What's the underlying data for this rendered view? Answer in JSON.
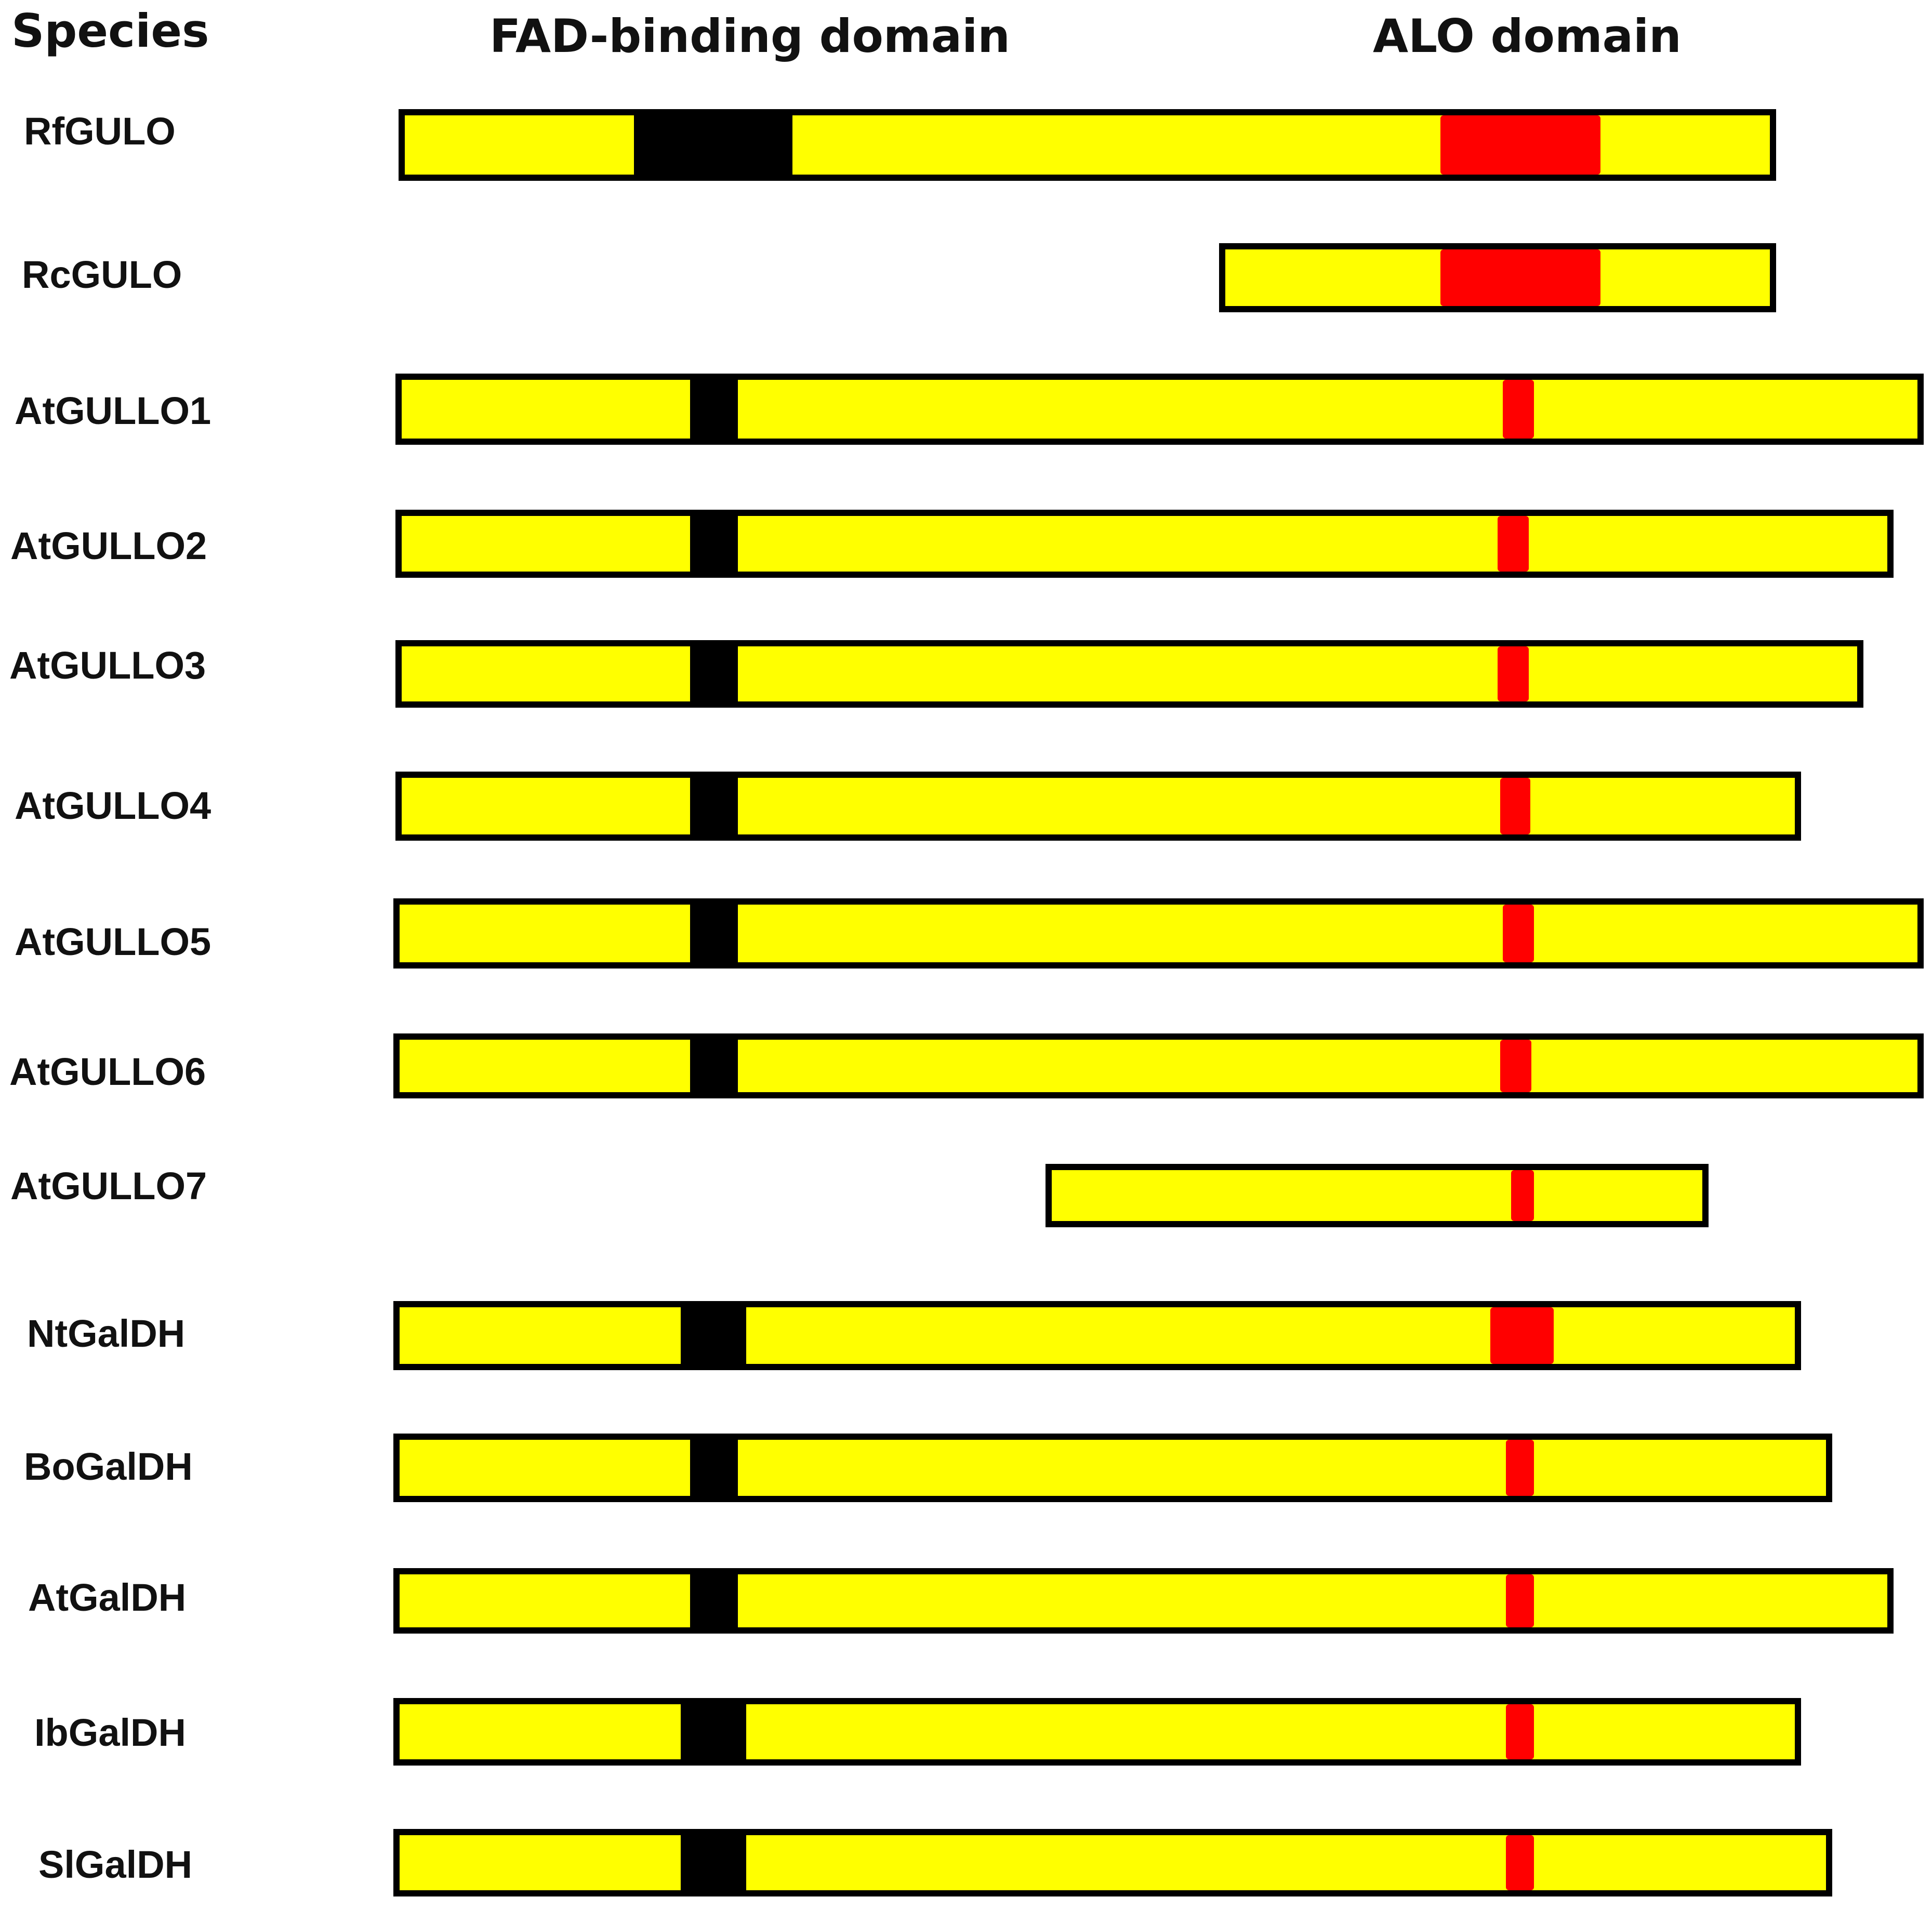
{
  "headers": {
    "species": "Species",
    "fad": "FAD-binding domain",
    "alo": "ALO domain"
  },
  "colors": {
    "protein": "#ffff00",
    "fad_domain": "#000000",
    "alo_domain": "#ff0000",
    "outline": "#000000"
  },
  "proteins": [
    {
      "name": "RfGULO"
    },
    {
      "name": "RcGULO"
    },
    {
      "name": "AtGULLO1"
    },
    {
      "name": "AtGULLO2"
    },
    {
      "name": "AtGULLO3"
    },
    {
      "name": "AtGULLO4"
    },
    {
      "name": "AtGULLO5"
    },
    {
      "name": "AtGULLO6"
    },
    {
      "name": "AtGULLO7"
    },
    {
      "name": "NtGalDH"
    },
    {
      "name": "BoGalDH"
    },
    {
      "name": "AtGalDH"
    },
    {
      "name": "IbGalDH"
    },
    {
      "name": "SlGalDH"
    }
  ]
}
